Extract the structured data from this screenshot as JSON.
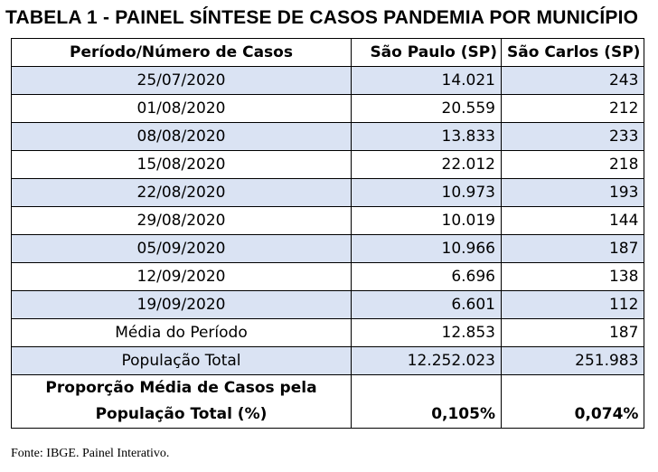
{
  "title": "TABELA 1 - PAINEL SÍNTESE DE CASOS PANDEMIA POR MUNICÍPIO",
  "table": {
    "headers": [
      "Período/Número de Casos",
      "São Paulo (SP)",
      "São Carlos (SP)"
    ],
    "rows": [
      {
        "period": "25/07/2020",
        "sp": "14.021",
        "sc": "243"
      },
      {
        "period": "01/08/2020",
        "sp": "20.559",
        "sc": "212"
      },
      {
        "period": "08/08/2020",
        "sp": "13.833",
        "sc": "233"
      },
      {
        "period": "15/08/2020",
        "sp": "22.012",
        "sc": "218"
      },
      {
        "period": "22/08/2020",
        "sp": "10.973",
        "sc": "193"
      },
      {
        "period": "29/08/2020",
        "sp": "10.019",
        "sc": "144"
      },
      {
        "period": "05/09/2020",
        "sp": "10.966",
        "sc": "187"
      },
      {
        "period": "12/09/2020",
        "sp": "6.696",
        "sc": "138"
      },
      {
        "period": "19/09/2020",
        "sp": "6.601",
        "sc": "112"
      }
    ],
    "media": {
      "label": "Média do Período",
      "sp": "12.853",
      "sc": "187"
    },
    "populacao": {
      "label": "População Total",
      "sp": "12.252.023",
      "sc": "251.983"
    },
    "proporcao": {
      "label_line1": "Proporção Média de Casos pela",
      "label_line2": "População Total (%)",
      "sp": "0,105%",
      "sc": "0,074%"
    },
    "shade_color": "#dae3f3"
  },
  "footer": "Fonte: IBGE.  Painel Interativo."
}
